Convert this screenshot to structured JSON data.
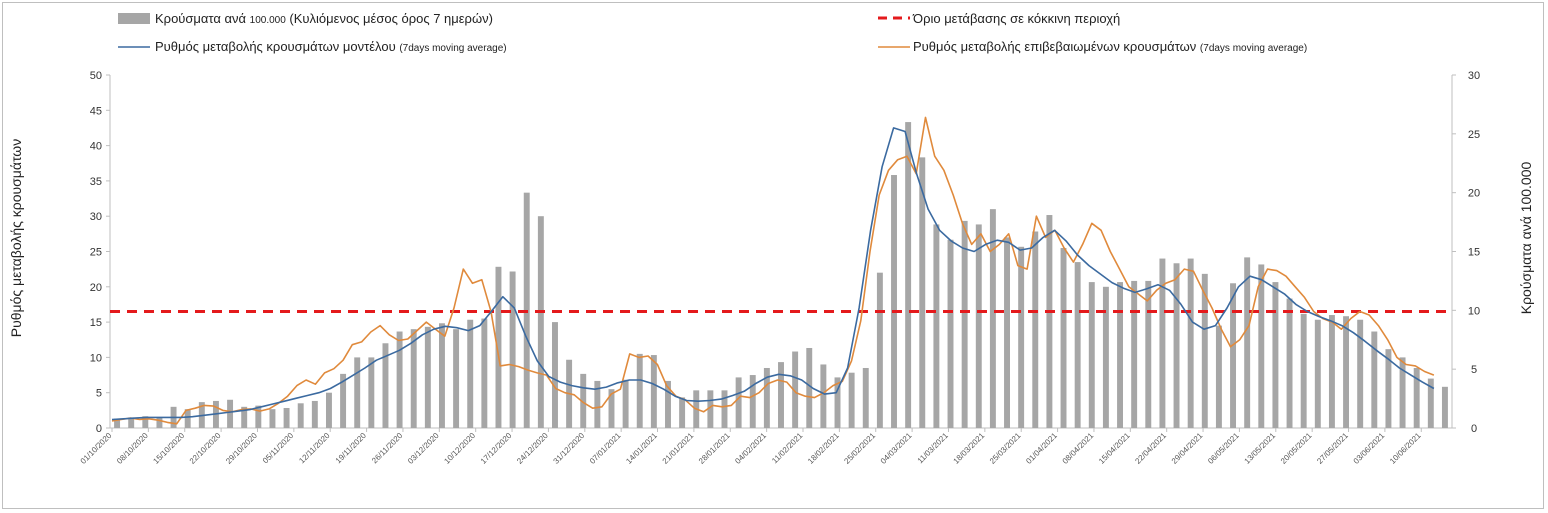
{
  "colors": {
    "bars": "#a6a6a6",
    "threshold": "#e41a1c",
    "model": "#3b6aa0",
    "confirmed": "#e08a3c",
    "axis": "#bfbfbf",
    "text": "#222222"
  },
  "legend": {
    "bars": {
      "main": "Κρούσματα ανά ",
      "num": "100.000",
      "rest": " (Κυλιόμενος μέσος όρος 7 ημερών)"
    },
    "threshold": {
      "main": "Όριο μετάβασης σε κόκκινη περιοχή"
    },
    "model": {
      "main": "Ρυθμός μεταβολής κρουσμάτων μοντέλου ",
      "small": "(7days moving average)"
    },
    "confirmed": {
      "main": "Ρυθμός μεταβολής επιβεβαιωμένων κρουσμάτων ",
      "small": "(7days moving average)"
    }
  },
  "chart_data": {
    "type": "bar",
    "y_left": {
      "label": "Ρυθμός μεταβολής κρουσμάτων",
      "ylim": [
        0,
        50
      ],
      "ticks": [
        0,
        5,
        10,
        15,
        20,
        25,
        30,
        35,
        40,
        45,
        50
      ]
    },
    "y_right": {
      "label": "Κρούσματα ανά 100.000",
      "ylim": [
        0,
        30
      ],
      "ticks": [
        0,
        5,
        10,
        15,
        20,
        25,
        30
      ]
    },
    "x": {
      "start": "01/10/2020",
      "end": "14/06/2021",
      "step_days": 7,
      "tick_labels": [
        "01/10/2020",
        "08/10/2020",
        "15/10/2020",
        "22/10/2020",
        "29/10/2020",
        "05/11/2020",
        "12/11/2020",
        "19/11/2020",
        "26/11/2020",
        "03/12/2020",
        "10/12/2020",
        "17/12/2020",
        "24/12/2020",
        "31/12/2020",
        "07/01/2021",
        "14/01/2021",
        "21/01/2021",
        "28/01/2021",
        "04/02/2021",
        "11/02/2021",
        "18/02/2021",
        "25/02/2021",
        "04/03/2021",
        "11/03/2021",
        "18/03/2021",
        "25/03/2021",
        "01/04/2021",
        "08/04/2021",
        "15/04/2021",
        "22/04/2021",
        "29/04/2021",
        "06/05/2021",
        "13/05/2021",
        "20/05/2021",
        "27/05/2021",
        "03/06/2021",
        "10/06/2021"
      ]
    },
    "series": [
      {
        "name": "Κρούσματα ανά 100.000 (Κυλιόμενος μέσος όρος 7 ημερών)",
        "kind": "bar",
        "axis": "right",
        "values": [
          0.8,
          0.9,
          1.0,
          0.9,
          1.8,
          1.6,
          2.2,
          2.3,
          2.4,
          1.8,
          1.9,
          1.6,
          1.7,
          2.1,
          2.3,
          3.0,
          4.6,
          6.0,
          6.0,
          7.2,
          8.2,
          8.4,
          8.6,
          8.9,
          8.4,
          9.2,
          9.3,
          13.7,
          13.3,
          20.0,
          18.0,
          9.0,
          5.8,
          4.6,
          4.0,
          3.3,
          4.1,
          6.3,
          6.2,
          4.0,
          2.6,
          3.2,
          3.2,
          3.2,
          4.3,
          4.5,
          5.1,
          5.6,
          6.5,
          6.8,
          5.4,
          4.3,
          4.7,
          5.1,
          13.2,
          21.5,
          26.0,
          23.0,
          17.3,
          16.0,
          17.6,
          17.3,
          18.6,
          16.2,
          15.4,
          16.7,
          18.1,
          15.3,
          14.1,
          12.4,
          12.0,
          12.4,
          12.5,
          12.5,
          14.4,
          14.0,
          14.4,
          13.1,
          8.7,
          12.3,
          14.5,
          13.9,
          12.4,
          11.0,
          9.7,
          9.2,
          9.6,
          9.5,
          9.2,
          8.2,
          6.7,
          6.0,
          5.1,
          4.2,
          3.5
        ]
      },
      {
        "name": "Όριο μετάβασης σε κόκκινη περιοχή",
        "kind": "threshold",
        "axis": "left",
        "value": 16.5
      },
      {
        "name": "Ρυθμός μεταβολής κρουσμάτων μοντέλου (7days moving average)",
        "kind": "line",
        "axis": "left",
        "values": [
          1.2,
          1.3,
          1.4,
          1.5,
          1.5,
          1.5,
          1.5,
          1.6,
          1.8,
          2.0,
          2.2,
          2.4,
          2.6,
          3.0,
          3.4,
          3.8,
          4.2,
          4.6,
          5.0,
          5.6,
          6.5,
          7.5,
          8.5,
          9.6,
          10.3,
          11.0,
          12.0,
          13.2,
          14.0,
          14.4,
          14.2,
          13.8,
          14.5,
          16.5,
          18.6,
          17.0,
          13.0,
          9.5,
          7.3,
          6.5,
          6.0,
          5.7,
          5.5,
          5.8,
          6.4,
          6.8,
          6.8,
          6.3,
          5.5,
          4.5,
          3.9,
          3.8,
          3.9,
          4.1,
          4.6,
          5.2,
          6.3,
          7.2,
          7.6,
          7.4,
          6.8,
          5.6,
          4.8,
          5.0,
          8.5,
          17.0,
          28.0,
          37.0,
          42.5,
          42.0,
          36.0,
          31.0,
          28.0,
          26.5,
          25.5,
          25.0,
          26.0,
          26.6,
          26.3,
          25.2,
          25.5,
          27.0,
          28.0,
          26.5,
          24.5,
          23.0,
          21.8,
          20.6,
          19.8,
          19.2,
          19.7,
          20.3,
          19.5,
          17.5,
          15.0,
          14.0,
          14.5,
          17.0,
          20.0,
          21.5,
          21.0,
          20.0,
          19.0,
          17.5,
          16.5,
          15.8,
          15.2,
          14.5,
          13.5,
          12.3,
          11.0,
          9.8,
          8.5,
          7.5,
          6.5,
          5.6
        ]
      },
      {
        "name": "Ρυθμός μεταβολής επιβεβαιωμένων κρουσμάτων (7days moving average)",
        "kind": "line",
        "axis": "left",
        "values": [
          1.0,
          1.2,
          1.4,
          1.2,
          1.3,
          1.1,
          0.8,
          0.6,
          2.5,
          2.8,
          3.2,
          3.1,
          2.5,
          2.3,
          2.6,
          2.7,
          2.4,
          2.7,
          3.5,
          4.5,
          6.0,
          6.8,
          6.2,
          7.8,
          8.4,
          9.6,
          11.8,
          12.2,
          13.6,
          14.5,
          13.2,
          12.4,
          12.6,
          13.8,
          15.0,
          14.0,
          13.0,
          17.0,
          22.5,
          20.5,
          21.0,
          16.5,
          8.8,
          9.0,
          8.7,
          8.2,
          7.8,
          7.5,
          5.6,
          5.0,
          4.7,
          3.6,
          2.8,
          3.0,
          4.8,
          5.5,
          10.5,
          10.0,
          10.2,
          9.0,
          6.0,
          4.5,
          4.0,
          2.8,
          2.3,
          3.2,
          3.0,
          3.2,
          4.5,
          4.3,
          5.0,
          6.3,
          6.8,
          6.5,
          5.0,
          4.5,
          4.3,
          5.0,
          6.0,
          6.6,
          9.5,
          15.2,
          25.0,
          33.0,
          36.5,
          38.0,
          38.5,
          36.0,
          44.0,
          38.5,
          36.5,
          33.0,
          29.0,
          26.0,
          27.5,
          25.0,
          26.0,
          27.5,
          23.0,
          22.5,
          30.0,
          27.0,
          28.0,
          25.5,
          23.5,
          26.0,
          29.0,
          28.0,
          25.0,
          22.5,
          20.0,
          19.0,
          18.0,
          19.5,
          20.5,
          21.0,
          22.5,
          22.2,
          19.5,
          17.0,
          14.0,
          11.5,
          12.5,
          14.5,
          20.0,
          22.5,
          22.3,
          21.5,
          20.0,
          18.5,
          16.5,
          15.5,
          15.0,
          14.0,
          15.5,
          16.5,
          16.0,
          14.5,
          12.5,
          10.0,
          9.0,
          8.8,
          8.0,
          7.5
        ]
      }
    ]
  }
}
